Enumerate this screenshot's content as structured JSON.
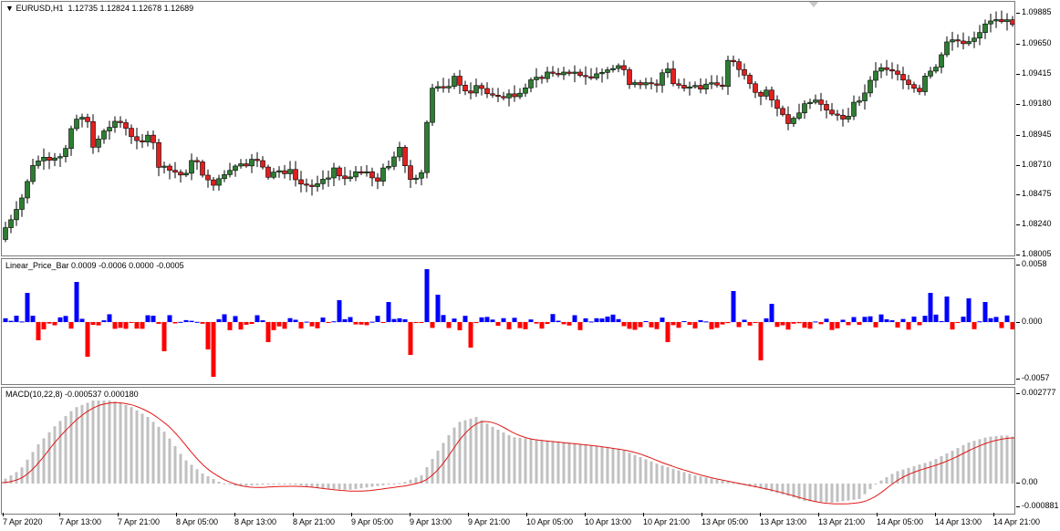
{
  "main": {
    "symbol": "EURUSD,H1",
    "ohlc": "1.12735 1.12824 1.12678 1.12689",
    "price_ticks": [
      "1.09885",
      "1.09650",
      "1.09415",
      "1.09180",
      "1.08945",
      "1.08710",
      "1.08475",
      "1.08240",
      "1.08005"
    ],
    "bull_color": "#2e7d32",
    "bear_color": "#e02020"
  },
  "ind1": {
    "label": "Linear_Price_Bar 0.0009 -0.0006 0.0000 -0.0005",
    "ticks": [
      "0.0058",
      "0.000",
      "-0.0057"
    ],
    "pos_color": "#0000ff",
    "neg_color": "#ff0000"
  },
  "ind2": {
    "label": "MACD(10,22,8) -0.000537 0.000180",
    "ticks": [
      "0.002777",
      "0.00",
      "-0.000881"
    ],
    "hist_color": "#c0c0c0",
    "signal_color": "#e01818"
  },
  "time_axis": [
    "7 Apr 2020",
    "7 Apr 13:00",
    "7 Apr 21:00",
    "8 Apr 05:00",
    "8 Apr 13:00",
    "8 Apr 21:00",
    "9 Apr 05:00",
    "9 Apr 13:00",
    "9 Apr 21:00",
    "10 Apr 05:00",
    "10 Apr 13:00",
    "10 Apr 21:00",
    "13 Apr 05:00",
    "13 Apr 13:00",
    "13 Apr 21:00",
    "14 Apr 05:00",
    "14 Apr 13:00",
    "14 Apr 21:00"
  ]
}
